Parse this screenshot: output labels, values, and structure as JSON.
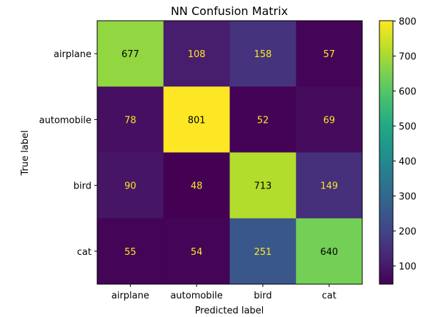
{
  "chart_data": {
    "type": "heatmap",
    "title": "NN Confusion Matrix",
    "xlabel": "Predicted label",
    "ylabel": "True label",
    "x_categories": [
      "airplane",
      "automobile",
      "bird",
      "cat"
    ],
    "y_categories": [
      "airplane",
      "automobile",
      "bird",
      "cat"
    ],
    "values": [
      [
        677,
        108,
        158,
        57
      ],
      [
        78,
        801,
        52,
        69
      ],
      [
        90,
        48,
        713,
        149
      ],
      [
        55,
        54,
        251,
        640
      ]
    ],
    "colormap": "viridis",
    "vmin": 48,
    "vmax": 801,
    "colorbar_ticks": [
      100,
      200,
      300,
      400,
      500,
      600,
      700,
      800
    ],
    "grid": false
  }
}
